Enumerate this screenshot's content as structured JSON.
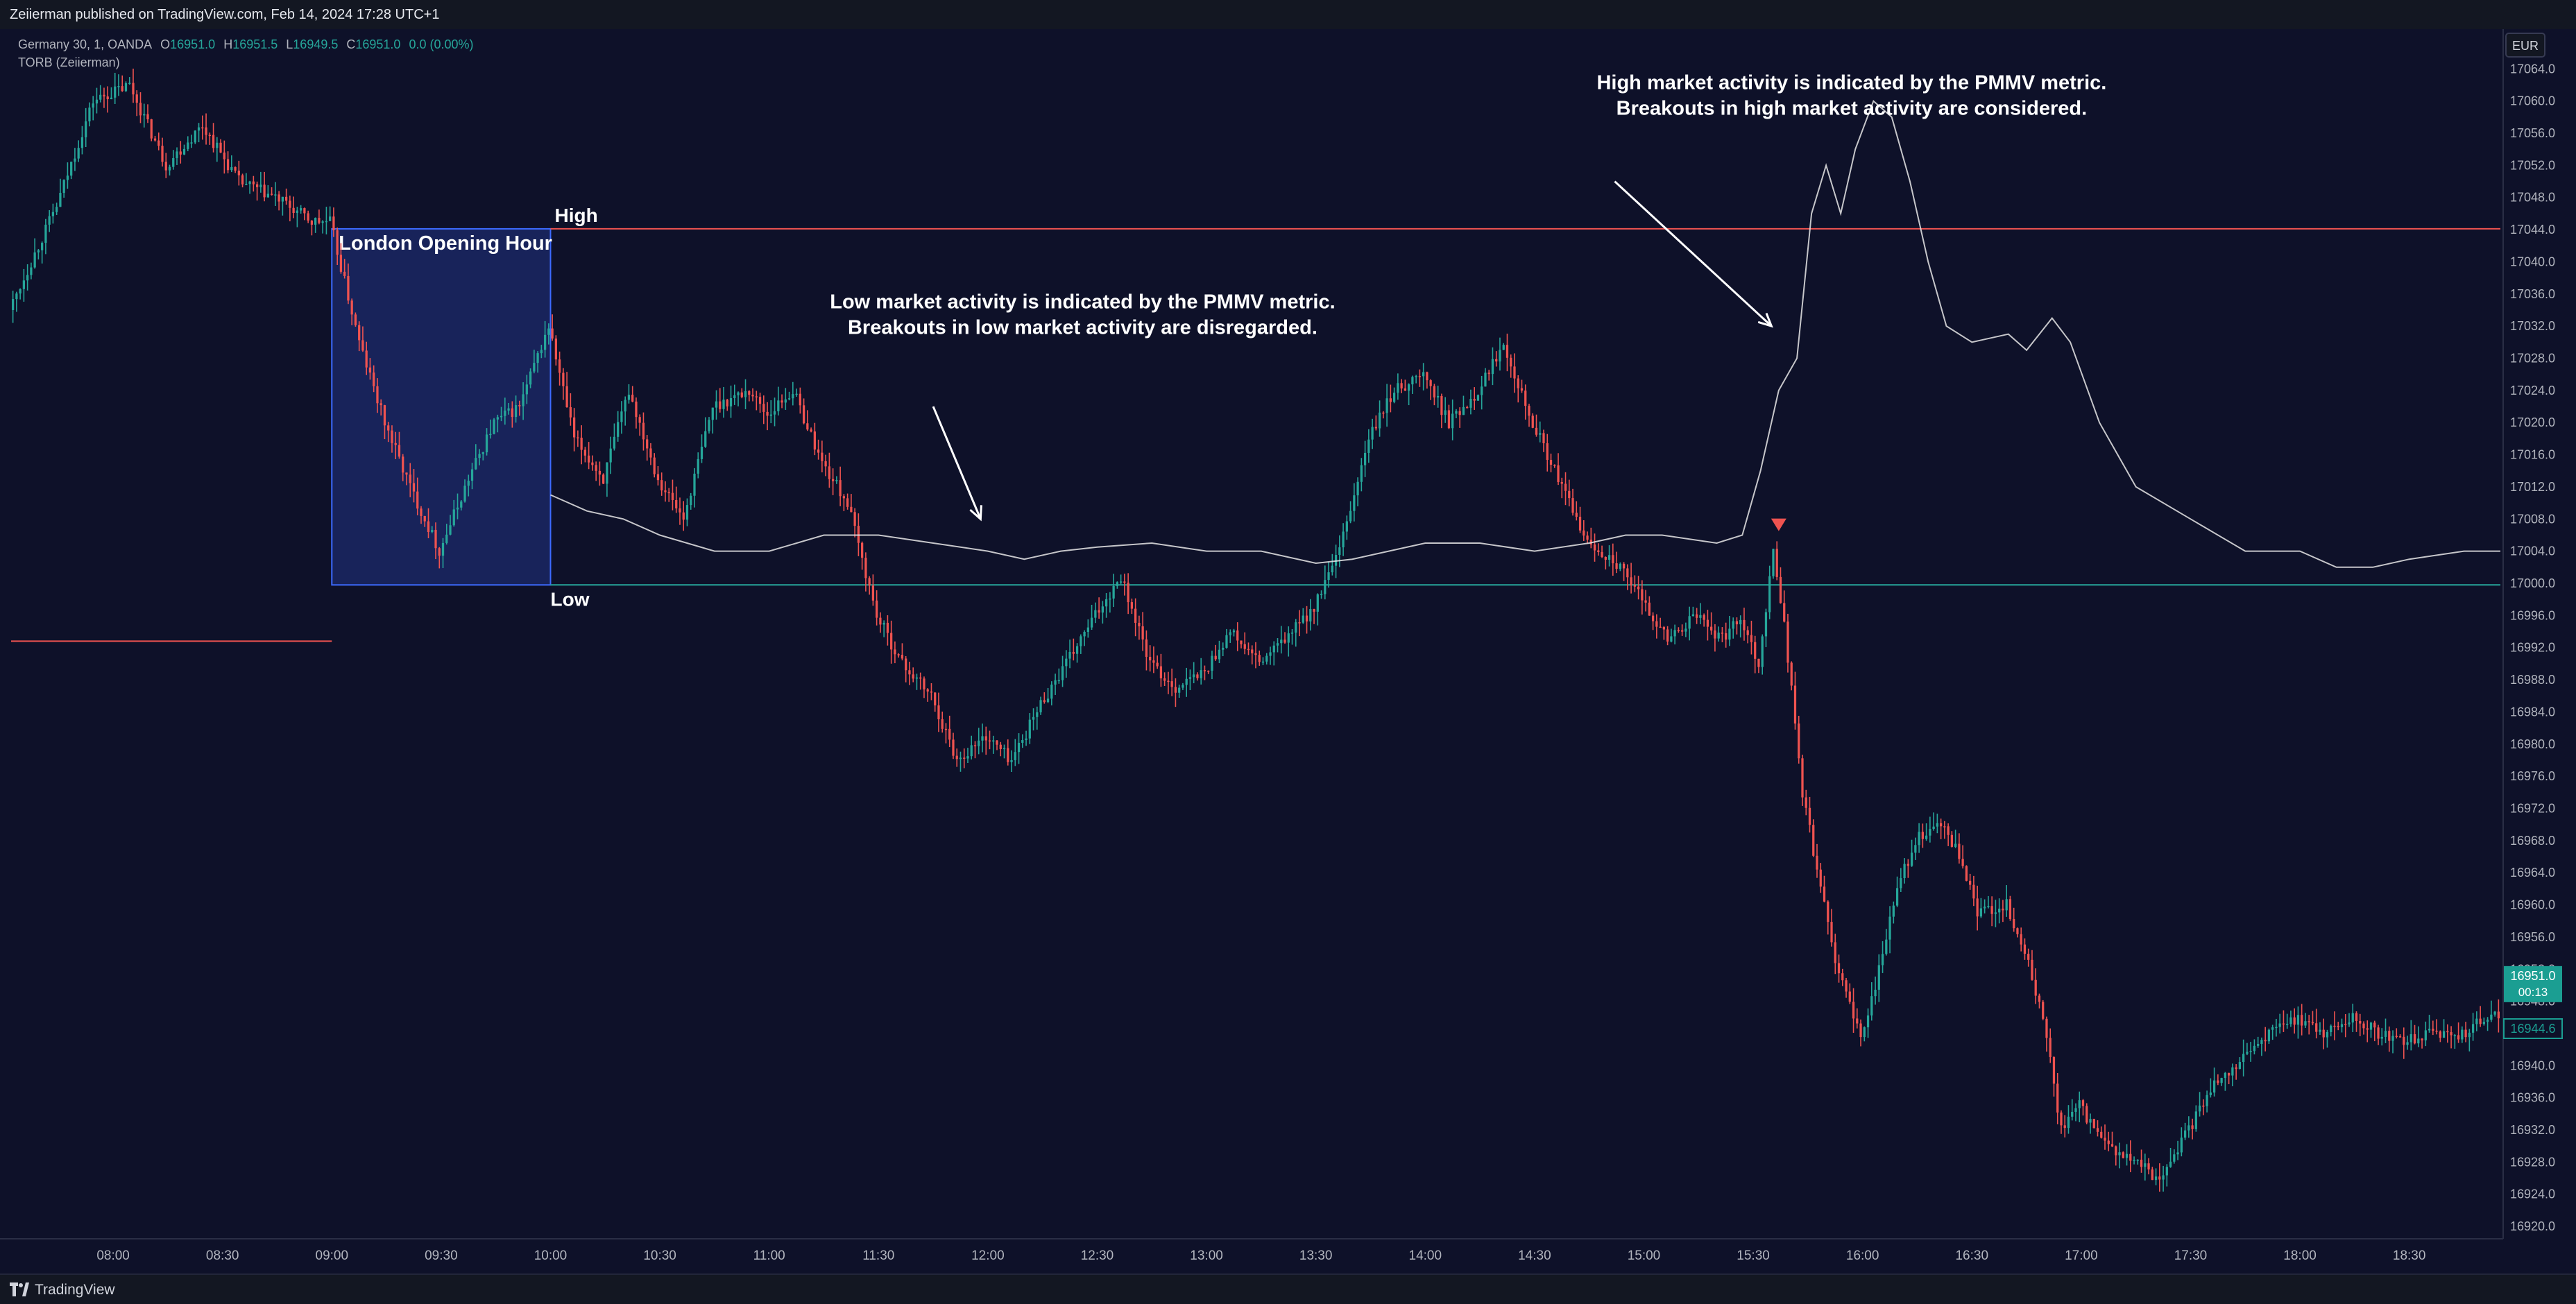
{
  "publish_line": "Zeiierman published on TradingView.com, Feb 14, 2024 17:28 UTC+1",
  "footer": {
    "brand": "TradingView",
    "logo": "tradingview-logo-icon"
  },
  "colors": {
    "background": "#0e1129",
    "up_candle": "#26a69a",
    "down_candle": "#ef5350",
    "high_line": "#ef5350",
    "low_line": "#26a69a",
    "pmmv_line": "#e6e6e6",
    "session_box_fill": "#1c2a6b",
    "session_box_border": "#3d6bff",
    "last_price_badge": "#1b9e92"
  },
  "chart_data": {
    "type": "candlestick",
    "instrument": {
      "symbol": "Germany 30",
      "interval": "1",
      "broker": "OANDA",
      "open_label": "O",
      "open": "16951.0",
      "high_label": "H",
      "high": "16951.5",
      "low_label": "L",
      "low": "16949.5",
      "close_label": "C",
      "close": "16951.0",
      "change": "0.0 (0.00%)"
    },
    "indicator_name": "TORB (Zeiierman)",
    "currency": "EUR",
    "x_ticks": [
      "08:00",
      "08:30",
      "09:00",
      "09:30",
      "10:00",
      "10:30",
      "11:00",
      "11:30",
      "12:00",
      "12:30",
      "13:00",
      "13:30",
      "14:00",
      "14:30",
      "15:00",
      "15:30",
      "16:00",
      "16:30",
      "17:00",
      "17:30",
      "18:00",
      "18:30"
    ],
    "x_range": [
      "07:32",
      "18:55"
    ],
    "y_ticks": [
      "17064.0",
      "17060.0",
      "17056.0",
      "17052.0",
      "17048.0",
      "17044.0",
      "17040.0",
      "17036.0",
      "17032.0",
      "17028.0",
      "17024.0",
      "17020.0",
      "17016.0",
      "17012.0",
      "17008.0",
      "17004.0",
      "17000.0",
      "16996.0",
      "16992.0",
      "16988.0",
      "16984.0",
      "16980.0",
      "16976.0",
      "16972.0",
      "16968.0",
      "16964.0",
      "16960.0",
      "16956.0",
      "16952.0",
      "16948.0",
      "16944.0",
      "16940.0",
      "16936.0",
      "16932.0",
      "16928.0",
      "16924.0",
      "16920.0"
    ],
    "ylim": [
      16918.8,
      17068.6
    ],
    "price_path": [
      [
        "07:32",
        17034
      ],
      [
        "07:45",
        17047
      ],
      [
        "07:55",
        17060
      ],
      [
        "08:05",
        17062
      ],
      [
        "08:15",
        17052
      ],
      [
        "08:25",
        17057
      ],
      [
        "08:35",
        17050
      ],
      [
        "08:45",
        17048
      ],
      [
        "08:55",
        17045
      ],
      [
        "09:00",
        17045
      ],
      [
        "09:08",
        17030
      ],
      [
        "09:15",
        17020
      ],
      [
        "09:22",
        17012
      ],
      [
        "09:30",
        17004
      ],
      [
        "09:38",
        17013
      ],
      [
        "09:45",
        17020
      ],
      [
        "09:52",
        17022
      ],
      [
        "10:00",
        17032
      ],
      [
        "10:07",
        17018
      ],
      [
        "10:15",
        17013
      ],
      [
        "10:22",
        17024
      ],
      [
        "10:30",
        17013
      ],
      [
        "10:37",
        17008
      ],
      [
        "10:45",
        17022
      ],
      [
        "10:55",
        17024
      ],
      [
        "11:00",
        17021
      ],
      [
        "11:07",
        17024
      ],
      [
        "11:15",
        17015
      ],
      [
        "11:22",
        17010
      ],
      [
        "11:30",
        16996
      ],
      [
        "11:37",
        16990
      ],
      [
        "11:45",
        16986
      ],
      [
        "11:52",
        16978
      ],
      [
        "12:00",
        16981
      ],
      [
        "12:07",
        16978
      ],
      [
        "12:15",
        16985
      ],
      [
        "12:22",
        16990
      ],
      [
        "12:30",
        16996
      ],
      [
        "12:37",
        17001
      ],
      [
        "12:45",
        16990
      ],
      [
        "12:52",
        16987
      ],
      [
        "13:00",
        16989
      ],
      [
        "13:07",
        16994
      ],
      [
        "13:15",
        16990
      ],
      [
        "13:22",
        16993
      ],
      [
        "13:30",
        16997
      ],
      [
        "13:37",
        17004
      ],
      [
        "13:45",
        17018
      ],
      [
        "13:52",
        17024
      ],
      [
        "14:00",
        17026
      ],
      [
        "14:07",
        17020
      ],
      [
        "14:15",
        17024
      ],
      [
        "14:22",
        17030
      ],
      [
        "14:30",
        17020
      ],
      [
        "14:37",
        17013
      ],
      [
        "14:45",
        17005
      ],
      [
        "14:52",
        17003
      ],
      [
        "15:00",
        16998
      ],
      [
        "15:07",
        16993
      ],
      [
        "15:15",
        16996
      ],
      [
        "15:22",
        16993
      ],
      [
        "15:27",
        16996
      ],
      [
        "15:32",
        16990
      ],
      [
        "15:36",
        17004
      ],
      [
        "15:39",
        16995
      ],
      [
        "15:44",
        16974
      ],
      [
        "15:52",
        16955
      ],
      [
        "16:00",
        16943
      ],
      [
        "16:05",
        16952
      ],
      [
        "16:10",
        16962
      ],
      [
        "16:15",
        16968
      ],
      [
        "16:22",
        16970
      ],
      [
        "16:27",
        16966
      ],
      [
        "16:32",
        16959
      ],
      [
        "16:40",
        16960
      ],
      [
        "16:45",
        16954
      ],
      [
        "16:50",
        16946
      ],
      [
        "16:55",
        16932
      ],
      [
        "17:00",
        16935
      ],
      [
        "17:07",
        16930
      ],
      [
        "17:15",
        16928
      ],
      [
        "17:22",
        16926
      ],
      [
        "17:30",
        16932
      ],
      [
        "17:37",
        16938
      ],
      [
        "17:45",
        16941
      ],
      [
        "17:52",
        16944
      ],
      [
        "18:00",
        16946
      ],
      [
        "18:07",
        16944
      ],
      [
        "18:15",
        16946
      ],
      [
        "18:22",
        16944
      ],
      [
        "18:30",
        16943
      ],
      [
        "18:37",
        16944
      ],
      [
        "18:45",
        16944
      ],
      [
        "18:52",
        16946
      ]
    ],
    "pmmv_path": [
      [
        "10:00",
        17011
      ],
      [
        "10:10",
        17009
      ],
      [
        "10:20",
        17008
      ],
      [
        "10:30",
        17006
      ],
      [
        "10:45",
        17004
      ],
      [
        "11:00",
        17004
      ],
      [
        "11:15",
        17006
      ],
      [
        "11:30",
        17006
      ],
      [
        "11:45",
        17005
      ],
      [
        "12:00",
        17004
      ],
      [
        "12:10",
        17003
      ],
      [
        "12:20",
        17004
      ],
      [
        "12:30",
        17004.5
      ],
      [
        "12:45",
        17005
      ],
      [
        "13:00",
        17004
      ],
      [
        "13:15",
        17004
      ],
      [
        "13:30",
        17002.5
      ],
      [
        "13:40",
        17003
      ],
      [
        "13:50",
        17004
      ],
      [
        "14:00",
        17005
      ],
      [
        "14:15",
        17005
      ],
      [
        "14:30",
        17004
      ],
      [
        "14:45",
        17005
      ],
      [
        "14:55",
        17006
      ],
      [
        "15:05",
        17006
      ],
      [
        "15:20",
        17005
      ],
      [
        "15:27",
        17006
      ],
      [
        "15:32",
        17014
      ],
      [
        "15:37",
        17024
      ],
      [
        "15:42",
        17028
      ],
      [
        "15:46",
        17046
      ],
      [
        "15:50",
        17052
      ],
      [
        "15:54",
        17046
      ],
      [
        "15:58",
        17054
      ],
      [
        "16:03",
        17060
      ],
      [
        "16:08",
        17058
      ],
      [
        "16:13",
        17050
      ],
      [
        "16:18",
        17040
      ],
      [
        "16:23",
        17032
      ],
      [
        "16:30",
        17030
      ],
      [
        "16:40",
        17031
      ],
      [
        "16:45",
        17029
      ],
      [
        "16:52",
        17033
      ],
      [
        "16:57",
        17030
      ],
      [
        "17:05",
        17020
      ],
      [
        "17:15",
        17012
      ],
      [
        "17:30",
        17008
      ],
      [
        "17:45",
        17004
      ],
      [
        "18:00",
        17004
      ],
      [
        "18:10",
        17002
      ],
      [
        "18:20",
        17002
      ],
      [
        "18:30",
        17003
      ],
      [
        "18:45",
        17004
      ],
      [
        "18:55",
        17004
      ]
    ],
    "opening_range": {
      "label": "London Opening Hour",
      "start": "09:00",
      "end": "10:00",
      "high": 17044.1,
      "low": 16999.8,
      "high_label": "High",
      "low_label": "Low"
    },
    "previous_line": {
      "start": "07:32",
      "end": "09:00",
      "price": 16992.8
    },
    "signal_marker": {
      "time": "15:37",
      "price": 17006.5,
      "shape": "down-triangle"
    },
    "annotations": [
      {
        "lines": [
          "Low market activity is indicated by the PMMV metric.",
          "Breakouts in low market activity are disregarded."
        ],
        "anchor_time": "12:26",
        "anchor_price": 17034.2
      },
      {
        "lines": [
          "High market activity is indicated by the PMMV metric.",
          "Breakouts in high market activity are considered."
        ],
        "anchor_time": "15:57",
        "anchor_price": 17061.5
      }
    ],
    "arrows": [
      {
        "from": [
          "11:45",
          17022
        ],
        "to": [
          "11:58",
          17008
        ]
      },
      {
        "from": [
          "14:52",
          17050
        ],
        "to": [
          "15:35",
          17032
        ]
      }
    ],
    "last_price": {
      "value": "16951.0",
      "countdown": "00:13",
      "price": 16951.0
    },
    "secondary_price": {
      "value": "16944.6",
      "price": 16944.6
    }
  }
}
